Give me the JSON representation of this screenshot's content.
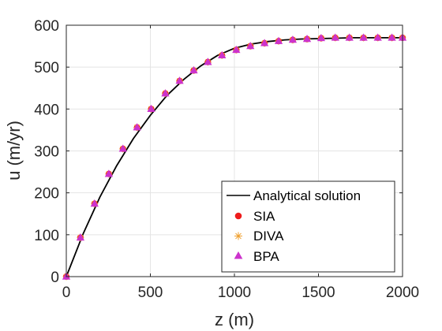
{
  "chart_data": {
    "type": "line",
    "xlabel": "z (m)",
    "ylabel": "u (m/yr)",
    "xlim": [
      0,
      2000
    ],
    "ylim": [
      0,
      600
    ],
    "xticks": [
      0,
      500,
      1000,
      1500,
      2000
    ],
    "yticks": [
      0,
      100,
      200,
      300,
      400,
      500,
      600
    ],
    "xtick_labels": [
      "0",
      "500",
      "1000",
      "1500",
      "2000"
    ],
    "ytick_labels": [
      "0",
      "100",
      "200",
      "300",
      "400",
      "500",
      "600"
    ],
    "grid": true,
    "legend_position": "bottom-right",
    "series": [
      {
        "name": "Analytical solution",
        "style": "line",
        "color": "#000000",
        "x": [
          0,
          100,
          200,
          300,
          400,
          500,
          600,
          700,
          800,
          900,
          1000,
          1100,
          1200,
          1300,
          1400,
          1500,
          1600,
          1700,
          1800,
          1900,
          2000
        ],
        "y": [
          0,
          102,
          190,
          265,
          330,
          385,
          433,
          471,
          503,
          528,
          545,
          555,
          561,
          565,
          567,
          568,
          569,
          570,
          570,
          570,
          570
        ]
      },
      {
        "name": "SIA",
        "style": "marker",
        "marker": "circle",
        "color": "#ee1c1c",
        "x": [
          0,
          84,
          168,
          253,
          337,
          421,
          505,
          589,
          674,
          758,
          842,
          926,
          1011,
          1095,
          1179,
          1263,
          1347,
          1432,
          1516,
          1600,
          1684,
          1768,
          1853,
          1937,
          2000
        ],
        "y": [
          0,
          93,
          174,
          245,
          305,
          356,
          400,
          437,
          467,
          492,
          512,
          528,
          541,
          550,
          557,
          562,
          565,
          567,
          569,
          570,
          570,
          570,
          570,
          570,
          570
        ]
      },
      {
        "name": "DIVA",
        "style": "marker",
        "marker": "asterisk",
        "color": "#f0a030",
        "x": [
          0,
          84,
          168,
          253,
          337,
          421,
          505,
          589,
          674,
          758,
          842,
          926,
          1011,
          1095,
          1179,
          1263,
          1347,
          1432,
          1516,
          1600,
          1684,
          1768,
          1853,
          1937,
          2000
        ],
        "y": [
          0,
          93,
          174,
          245,
          305,
          356,
          400,
          437,
          467,
          492,
          512,
          528,
          541,
          550,
          557,
          562,
          565,
          567,
          569,
          570,
          570,
          570,
          570,
          570,
          570
        ]
      },
      {
        "name": "BPA",
        "style": "marker",
        "marker": "triangle",
        "color": "#cc33cc",
        "x": [
          0,
          84,
          168,
          253,
          337,
          421,
          505,
          589,
          674,
          758,
          842,
          926,
          1011,
          1095,
          1179,
          1263,
          1347,
          1432,
          1516,
          1600,
          1684,
          1768,
          1853,
          1937,
          2000
        ],
        "y": [
          0,
          93,
          174,
          245,
          305,
          356,
          400,
          437,
          467,
          492,
          512,
          528,
          541,
          550,
          557,
          562,
          565,
          567,
          569,
          570,
          570,
          570,
          570,
          570,
          570
        ]
      }
    ]
  }
}
